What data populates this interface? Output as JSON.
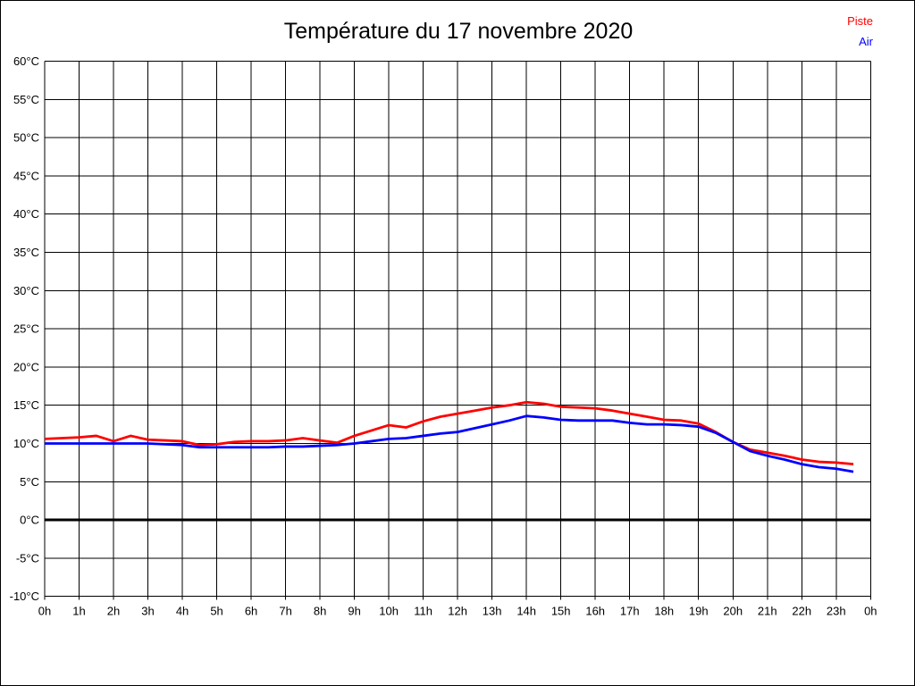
{
  "page": {
    "background": "#ffffff",
    "border_color": "#000000"
  },
  "header": {
    "title": "Température du 17 novembre 2020"
  },
  "legend": [
    {
      "label": "Piste",
      "color": "#ff0000"
    },
    {
      "label": "Air",
      "color": "#0000ff"
    }
  ],
  "chart_data": {
    "type": "line",
    "title": "Température du 17 novembre 2020",
    "xlabel": "",
    "ylabel": "",
    "xlim": [
      0,
      24
    ],
    "ylim": [
      -10,
      60
    ],
    "x_tick_step": 1,
    "y_tick_step": 5,
    "grid": true,
    "grid_color": "#000000",
    "zero_line_width": 3,
    "legend_position": "top-right",
    "x_tick_labels": [
      "0h",
      "1h",
      "2h",
      "3h",
      "4h",
      "5h",
      "6h",
      "7h",
      "8h",
      "9h",
      "10h",
      "11h",
      "12h",
      "13h",
      "14h",
      "15h",
      "16h",
      "17h",
      "18h",
      "19h",
      "20h",
      "21h",
      "22h",
      "23h",
      "0h"
    ],
    "y_tick_labels": [
      "60°C",
      "55°C",
      "50°C",
      "45°C",
      "40°C",
      "35°C",
      "30°C",
      "25°C",
      "20°C",
      "15°C",
      "10°C",
      "5°C",
      "0°C",
      "-5°C",
      "-10°C"
    ],
    "x": [
      0,
      0.5,
      1,
      1.5,
      2,
      2.5,
      3,
      3.5,
      4,
      4.5,
      5,
      5.5,
      6,
      6.5,
      7,
      7.5,
      8,
      8.5,
      9,
      9.5,
      10,
      10.5,
      11,
      11.5,
      12,
      12.5,
      13,
      13.5,
      14,
      14.5,
      15,
      15.5,
      16,
      16.5,
      17,
      17.5,
      18,
      18.5,
      19,
      19.5,
      20,
      20.5,
      21,
      21.5,
      22,
      22.5,
      23,
      23.5
    ],
    "series": [
      {
        "name": "Piste",
        "color": "#ff0000",
        "values": [
          10.6,
          10.7,
          10.8,
          11.0,
          10.3,
          11.0,
          10.5,
          10.4,
          10.3,
          9.8,
          9.9,
          10.2,
          10.3,
          10.3,
          10.4,
          10.7,
          10.4,
          10.1,
          11.0,
          11.7,
          12.4,
          12.1,
          12.9,
          13.5,
          13.9,
          14.3,
          14.7,
          15.0,
          15.4,
          15.2,
          14.8,
          14.7,
          14.6,
          14.3,
          13.9,
          13.5,
          13.1,
          13.0,
          12.6,
          11.5,
          10.2,
          9.2,
          8.8,
          8.4,
          7.9,
          7.6,
          7.5,
          7.3
        ]
      },
      {
        "name": "Air",
        "color": "#0000ff",
        "values": [
          10.0,
          10.0,
          10.0,
          10.0,
          10.0,
          10.0,
          10.0,
          9.9,
          9.8,
          9.5,
          9.5,
          9.5,
          9.5,
          9.5,
          9.6,
          9.6,
          9.7,
          9.8,
          10.0,
          10.3,
          10.6,
          10.7,
          11.0,
          11.3,
          11.5,
          12.0,
          12.5,
          13.0,
          13.6,
          13.4,
          13.1,
          13.0,
          13.0,
          13.0,
          12.7,
          12.5,
          12.5,
          12.4,
          12.2,
          11.4,
          10.2,
          9.0,
          8.4,
          7.9,
          7.3,
          6.9,
          6.7,
          6.3
        ]
      }
    ]
  }
}
